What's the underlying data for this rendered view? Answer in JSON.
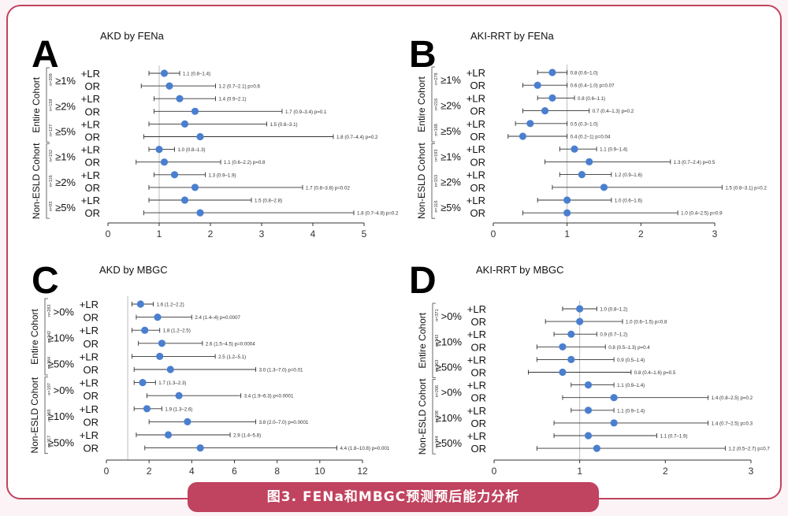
{
  "caption": "图3. FENa和MBGC预测预后能力分析",
  "chart_data": [
    {
      "type": "forest",
      "panel_letter": "A",
      "title": "AKD by FENa",
      "xlim": [
        0,
        5
      ],
      "xticks": [
        "0",
        "1",
        "2",
        "3",
        "4",
        "5"
      ],
      "reference_line": 1,
      "groups": [
        {
          "label": "Entire Cohort",
          "rows": [
            {
              "threshold": "≥1%",
              "n": "n=208",
              "type": "+LR",
              "point": 1.1,
              "low": 0.8,
              "high": 1.4,
              "text": "1.1 (0.8–1.4)"
            },
            {
              "threshold": "≥1%",
              "n": "n=208",
              "type": "OR",
              "point": 1.2,
              "low": 0.65,
              "high": 2.1,
              "text": "1.2 (0.7–2.1) p=0.6"
            },
            {
              "threshold": "≥2%",
              "n": "n=159",
              "type": "+LR",
              "point": 1.4,
              "low": 0.9,
              "high": 2.1,
              "text": "1.4 (0.9–2.1)"
            },
            {
              "threshold": "≥2%",
              "n": "n=159",
              "type": "OR",
              "point": 1.7,
              "low": 0.9,
              "high": 3.4,
              "text": "1.7 (0.9–3.4) p=0.1"
            },
            {
              "threshold": "≥5%",
              "n": "n=127",
              "type": "+LR",
              "point": 1.5,
              "low": 0.8,
              "high": 3.1,
              "text": "1.5 (0.8–3.1)"
            },
            {
              "threshold": "≥5%",
              "n": "n=127",
              "type": "OR",
              "point": 1.8,
              "low": 0.7,
              "high": 4.4,
              "text": "1.8 (0.7–4.4) p=0.2"
            }
          ]
        },
        {
          "label": "Non-ESLD Cohort",
          "rows": [
            {
              "threshold": "≥1%",
              "n": "n=152",
              "type": "+LR",
              "point": 1.0,
              "low": 0.8,
              "high": 1.3,
              "text": "1.0 (0.8–1.3)"
            },
            {
              "threshold": "≥1%",
              "n": "n=152",
              "type": "OR",
              "point": 1.1,
              "low": 0.55,
              "high": 2.2,
              "text": "1.1 (0.6–2.2) p=0.8"
            },
            {
              "threshold": "≥2%",
              "n": "n=116",
              "type": "+LR",
              "point": 1.3,
              "low": 0.9,
              "high": 1.9,
              "text": "1.3 (0.9–1.9)"
            },
            {
              "threshold": "≥2%",
              "n": "n=116",
              "type": "OR",
              "point": 1.7,
              "low": 0.8,
              "high": 3.8,
              "text": "1.7 (0.8–3.8) p=0.02"
            },
            {
              "threshold": "≥5%",
              "n": "n=93",
              "type": "+LR",
              "point": 1.5,
              "low": 0.8,
              "high": 2.8,
              "text": "1.5 (0.8–2.8)"
            },
            {
              "threshold": "≥5%",
              "n": "n=93",
              "type": "OR",
              "point": 1.8,
              "low": 0.7,
              "high": 4.8,
              "text": "1.8 (0.7–4.8) p=0.2"
            }
          ]
        }
      ]
    },
    {
      "type": "forest",
      "panel_letter": "B",
      "title": "AKI-RRT by FENa",
      "xlim": [
        0,
        3
      ],
      "xticks": [
        "0",
        "1",
        "2",
        "3"
      ],
      "reference_line": 1,
      "groups": [
        {
          "label": "Entire Cohort",
          "rows": [
            {
              "threshold": "≥1%",
              "n": "n=278",
              "type": "+LR",
              "point": 0.8,
              "low": 0.6,
              "high": 1.0,
              "text": "0.8 (0.6–1.0)"
            },
            {
              "threshold": "≥1%",
              "n": "n=278",
              "type": "OR",
              "point": 0.6,
              "low": 0.4,
              "high": 1.0,
              "text": "0.6 (0.4–1.0) p=0.07"
            },
            {
              "threshold": "≥2%",
              "n": "n=216",
              "type": "+LR",
              "point": 0.8,
              "low": 0.6,
              "high": 1.1,
              "text": "0.8 (0.6–1.1)"
            },
            {
              "threshold": "≥2%",
              "n": "n=216",
              "type": "OR",
              "point": 0.7,
              "low": 0.4,
              "high": 1.3,
              "text": "0.7 (0.4–1.3) p=0.2"
            },
            {
              "threshold": "≥5%",
              "n": "n=168",
              "type": "+LR",
              "point": 0.5,
              "low": 0.3,
              "high": 1.0,
              "text": "0.5 (0.3–1.0)"
            },
            {
              "threshold": "≥5%",
              "n": "n=168",
              "type": "OR",
              "point": 0.4,
              "low": 0.2,
              "high": 1.0,
              "text": "0.4 (0.2–1) p=0.04"
            }
          ]
        },
        {
          "label": "Non-ESLD Cohort",
          "rows": [
            {
              "threshold": "≥1%",
              "n": "n=193",
              "type": "+LR",
              "point": 1.1,
              "low": 0.9,
              "high": 1.4,
              "text": "1.1 (0.9–1.4)"
            },
            {
              "threshold": "≥1%",
              "n": "n=193",
              "type": "OR",
              "point": 1.3,
              "low": 0.7,
              "high": 2.4,
              "text": "1.3 (0.7–2.4) p=0.5"
            },
            {
              "threshold": "≥2%",
              "n": "n=153",
              "type": "+LR",
              "point": 1.2,
              "low": 0.9,
              "high": 1.6,
              "text": "1.2 (0.9–1.6)"
            },
            {
              "threshold": "≥2%",
              "n": "n=153",
              "type": "OR",
              "point": 1.5,
              "low": 0.8,
              "high": 3.1,
              "text": "1.5 (0.8–3.1) p=0.2"
            },
            {
              "threshold": "≥5%",
              "n": "n=116",
              "type": "+LR",
              "point": 1.0,
              "low": 0.6,
              "high": 1.6,
              "text": "1.0 (0.6–1.6)"
            },
            {
              "threshold": "≥5%",
              "n": "n=116",
              "type": "OR",
              "point": 1.0,
              "low": 0.4,
              "high": 2.5,
              "text": "1.0 (0.4–2.5) p=0.9"
            }
          ]
        }
      ]
    },
    {
      "type": "forest",
      "panel_letter": "C",
      "title": "AKD by MBGC",
      "xlim": [
        0,
        12
      ],
      "xticks": [
        "0",
        "2",
        "4",
        "6",
        "8",
        "10",
        "12"
      ],
      "reference_line": 1,
      "groups": [
        {
          "label": "Entire Cohort",
          "rows": [
            {
              "threshold": ">0%",
              "n": "n=283",
              "type": "+LR",
              "point": 1.6,
              "low": 1.2,
              "high": 2.2,
              "text": "1.6 (1.2–2.2)"
            },
            {
              "threshold": ">0%",
              "n": "n=283",
              "type": "OR",
              "point": 2.4,
              "low": 1.4,
              "high": 4.0,
              "text": "2.4 (1.4–4) p=0.0007"
            },
            {
              "threshold": "≥10%",
              "n": "n=242",
              "type": "+LR",
              "point": 1.8,
              "low": 1.2,
              "high": 2.5,
              "text": "1.8 (1.2–2.5)"
            },
            {
              "threshold": "≥10%",
              "n": "n=242",
              "type": "OR",
              "point": 2.6,
              "low": 1.5,
              "high": 4.5,
              "text": "2.6 (1.5–4.5) p=0.0004"
            },
            {
              "threshold": "≥50%",
              "n": "n=184",
              "type": "+LR",
              "point": 2.5,
              "low": 1.2,
              "high": 5.1,
              "text": "2.5 (1.2–5.1)"
            },
            {
              "threshold": "≥50%",
              "n": "n=184",
              "type": "OR",
              "point": 3.0,
              "low": 1.3,
              "high": 7.0,
              "text": "3.0 (1.3–7.0) p=0.01"
            }
          ]
        },
        {
          "label": "Non-ESLD Cohort",
          "rows": [
            {
              "threshold": ">0%",
              "n": "n=197",
              "type": "+LR",
              "point": 1.7,
              "low": 1.3,
              "high": 2.3,
              "text": "1.7 (1.3–2.3)"
            },
            {
              "threshold": ">0%",
              "n": "n=197",
              "type": "OR",
              "point": 3.4,
              "low": 1.9,
              "high": 6.3,
              "text": "3.4 (1.9–6.3) p<0.0001"
            },
            {
              "threshold": "≥10%",
              "n": "n=165",
              "type": "+LR",
              "point": 1.9,
              "low": 1.3,
              "high": 2.6,
              "text": "1.9 (1.3–2.6)"
            },
            {
              "threshold": "≥10%",
              "n": "n=165",
              "type": "OR",
              "point": 3.8,
              "low": 2.0,
              "high": 7.0,
              "text": "3.8 (2.0–7.0) p=0.0001"
            },
            {
              "threshold": "≥50%",
              "n": "n=117",
              "type": "+LR",
              "point": 2.9,
              "low": 1.4,
              "high": 5.8,
              "text": "2.9 (1.4–5.8)"
            },
            {
              "threshold": "≥50%",
              "n": "n=117",
              "type": "OR",
              "point": 4.4,
              "low": 1.8,
              "high": 10.8,
              "text": "4.4 (1.8–10.8) p=0.001"
            }
          ]
        }
      ]
    },
    {
      "type": "forest",
      "panel_letter": "D",
      "title": "AKI-RRT by MBGC",
      "xlim": [
        0,
        3
      ],
      "xticks": [
        "0",
        "1",
        "2",
        "3"
      ],
      "reference_line": 1,
      "groups": [
        {
          "label": "Entire Cohort",
          "rows": [
            {
              "threshold": ">0%",
              "n": "n=371",
              "type": "+LR",
              "point": 1.0,
              "low": 0.8,
              "high": 1.2,
              "text": "1.0 (0.8–1.2)"
            },
            {
              "threshold": ">0%",
              "n": "n=371",
              "type": "OR",
              "point": 1.0,
              "low": 0.6,
              "high": 1.5,
              "text": "1.0 (0.6–1.5) p=0.8"
            },
            {
              "threshold": "≥10%",
              "n": "n=342",
              "type": "+LR",
              "point": 0.9,
              "low": 0.7,
              "high": 1.2,
              "text": "0.9 (0.7–1.2)"
            },
            {
              "threshold": "≥10%",
              "n": "n=342",
              "type": "OR",
              "point": 0.8,
              "low": 0.5,
              "high": 1.3,
              "text": "0.8 (0.5–1.3) p=0.4"
            },
            {
              "threshold": "≥50%",
              "n": "n=263",
              "type": "+LR",
              "point": 0.9,
              "low": 0.5,
              "high": 1.4,
              "text": "0.9 (0.5–1.4)"
            },
            {
              "threshold": "≥50%",
              "n": "n=263",
              "type": "OR",
              "point": 0.8,
              "low": 0.4,
              "high": 1.6,
              "text": "0.8 (0.4–1.6) p=0.5"
            }
          ]
        },
        {
          "label": "Non-ESLD Cohort",
          "rows": [
            {
              "threshold": ">0%",
              "n": "n=266",
              "type": "+LR",
              "point": 1.1,
              "low": 0.9,
              "high": 1.4,
              "text": "1.1 (0.9–1.4)"
            },
            {
              "threshold": ">0%",
              "n": "n=266",
              "type": "OR",
              "point": 1.4,
              "low": 0.8,
              "high": 2.5,
              "text": "1.4 (0.8–2.5) p=0.2"
            },
            {
              "threshold": "≥10%",
              "n": "n=238",
              "type": "+LR",
              "point": 1.1,
              "low": 0.9,
              "high": 1.4,
              "text": "1.1 (0.9–1.4)"
            },
            {
              "threshold": "≥10%",
              "n": "n=238",
              "type": "OR",
              "point": 1.4,
              "low": 0.7,
              "high": 2.5,
              "text": "1.4 (0.7–2.5) p=0.3"
            },
            {
              "threshold": "≥50%",
              "n": "n=144",
              "type": "+LR",
              "point": 1.1,
              "low": 0.7,
              "high": 1.9,
              "text": "1.1 (0.7–1.9)"
            },
            {
              "threshold": "≥50%",
              "n": "n=144",
              "type": "OR",
              "point": 1.2,
              "low": 0.5,
              "high": 2.7,
              "text": "1.2 (0.5–2.7) p=0.7"
            }
          ]
        }
      ]
    }
  ]
}
